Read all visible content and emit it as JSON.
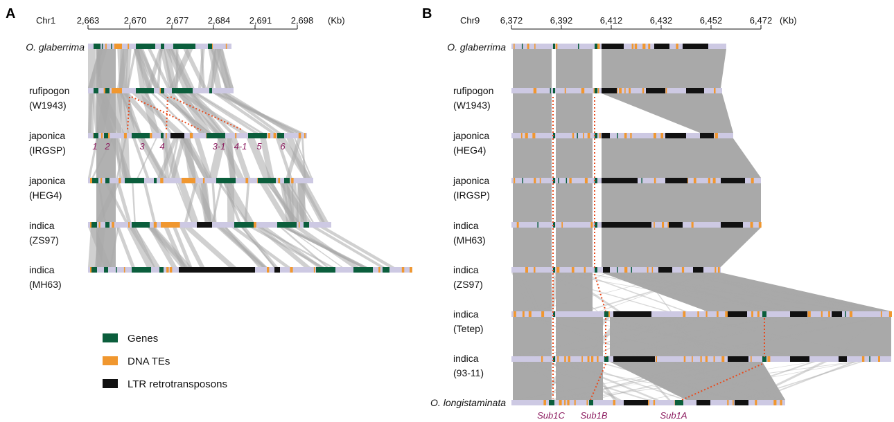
{
  "panels": {
    "a": {
      "letter": "A",
      "chr": "Chr1",
      "unit": "(Kb)",
      "ticks": [
        "2,663",
        "2,670",
        "2,677",
        "2,684",
        "2,691",
        "2,698"
      ],
      "labels": [
        [
          "O. glaberrima"
        ],
        [
          "rufipogon",
          "(W1943)"
        ],
        [
          "japonica",
          "(IRGSP)"
        ],
        [
          "japonica",
          "(HEG4)"
        ],
        [
          "indica",
          "(ZS97)"
        ],
        [
          "indica",
          "(MH63)"
        ]
      ],
      "gene_numbers": [
        "1",
        "2",
        "3",
        "4",
        "3-1",
        "4-1",
        "5",
        "6"
      ]
    },
    "b": {
      "letter": "B",
      "chr": "Chr9",
      "unit": "(Kb)",
      "ticks": [
        "6,372",
        "6,392",
        "6,412",
        "6,432",
        "6,452",
        "6,472"
      ],
      "labels": [
        [
          "O. glaberrima"
        ],
        [
          "rufipogon",
          "(W1943)"
        ],
        [
          "japonica",
          "(HEG4)"
        ],
        [
          "japonica",
          "(IRGSP)"
        ],
        [
          "indica",
          "(MH63)"
        ],
        [
          "indica",
          "(ZS97)"
        ],
        [
          "indica",
          "(Tetep)"
        ],
        [
          "indica",
          "(93-11)"
        ],
        [
          "O. longistaminata"
        ]
      ],
      "sub_genes": [
        "Sub1C",
        "Sub1B",
        "Sub1A"
      ]
    }
  },
  "legend": [
    {
      "label": "Genes",
      "color": "#0b5e3c"
    },
    {
      "label": "DNA TEs",
      "color": "#f0972f"
    },
    {
      "label": "LTR retrotransposons",
      "color": "#111111"
    }
  ],
  "colors": {
    "track": "#cdc9e3",
    "synteny": "#a9a9a9",
    "highlight_line": "#e84a1c",
    "gene_number": "#8b1a5e"
  }
}
